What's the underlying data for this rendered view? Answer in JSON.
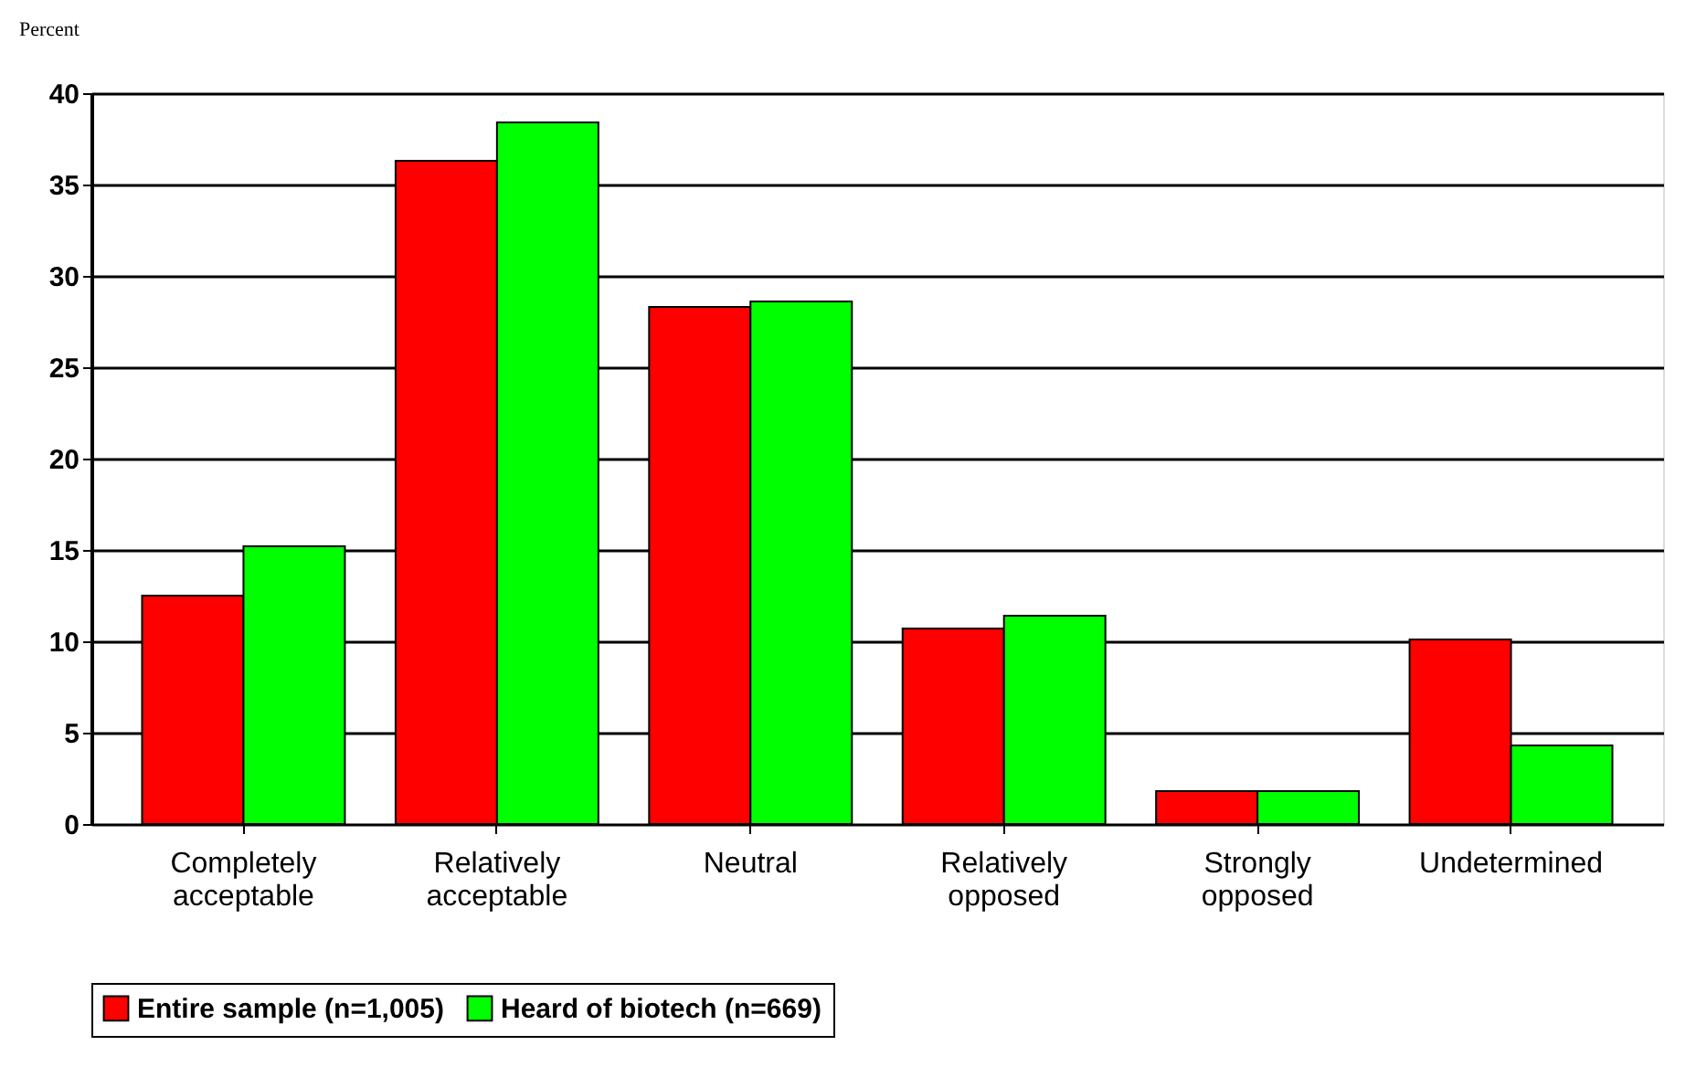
{
  "chart_data": {
    "type": "bar",
    "ylabel": "Percent",
    "categories": [
      "Completely acceptable",
      "Relatively acceptable",
      "Neutral",
      "Relatively opposed",
      "Strongly opposed",
      "Undetermined"
    ],
    "series": [
      {
        "name": "Entire sample (n=1,005)",
        "color": "#ff0000",
        "values": [
          12.5,
          36.3,
          28.3,
          10.7,
          1.8,
          10.1
        ]
      },
      {
        "name": "Heard of biotech (n=669)",
        "color": "#00ff00",
        "values": [
          15.2,
          38.4,
          28.6,
          11.4,
          1.8,
          4.3
        ]
      }
    ],
    "ylim": [
      0,
      40
    ],
    "yticks": [
      0,
      5,
      10,
      15,
      20,
      25,
      30,
      35,
      40
    ],
    "grid": "y",
    "legend": "bottom"
  }
}
